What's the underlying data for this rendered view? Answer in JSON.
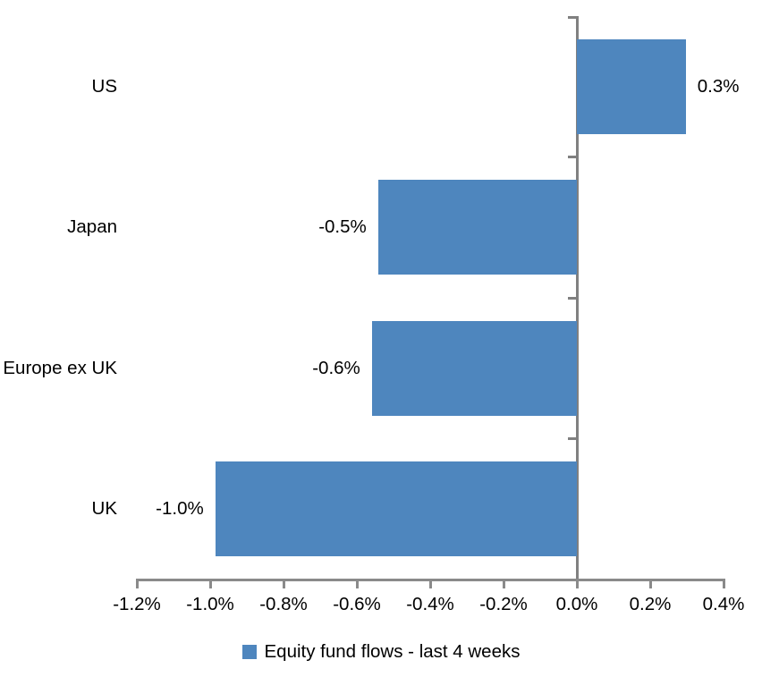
{
  "chart_data": {
    "type": "bar",
    "orientation": "horizontal",
    "title": "",
    "categories": [
      "US",
      "Japan",
      "Europe ex UK",
      "UK"
    ],
    "series": [
      {
        "name": "Equity fund flows - last 4 weeks",
        "values": [
          0.3,
          -0.5,
          -0.6,
          -1.0
        ],
        "values_precise": [
          0.297,
          -0.542,
          -0.559,
          -0.986
        ],
        "data_labels": [
          "0.3%",
          "-0.5%",
          "-0.6%",
          "-1.0%"
        ]
      }
    ],
    "x_axis": {
      "min": -1.2,
      "max": 0.4,
      "tick_step": 0.2,
      "tick_labels": [
        "-1.2%",
        "-1.0%",
        "-0.8%",
        "-0.6%",
        "-0.4%",
        "-0.2%",
        "0.0%",
        "0.2%",
        "0.4%"
      ]
    },
    "y_axis": {
      "zero_line_at": 0.0,
      "band_boundary_ticks": 4
    },
    "legend": {
      "position": "bottom",
      "label": "Equity fund flows - last 4 weeks",
      "swatch_color": "#4E86BE"
    },
    "grid": false,
    "colors": {
      "bar": "#4E86BE",
      "value_axis_line": "#8A8A8A",
      "category_axis_line": "#808080",
      "text": "#000000"
    }
  }
}
